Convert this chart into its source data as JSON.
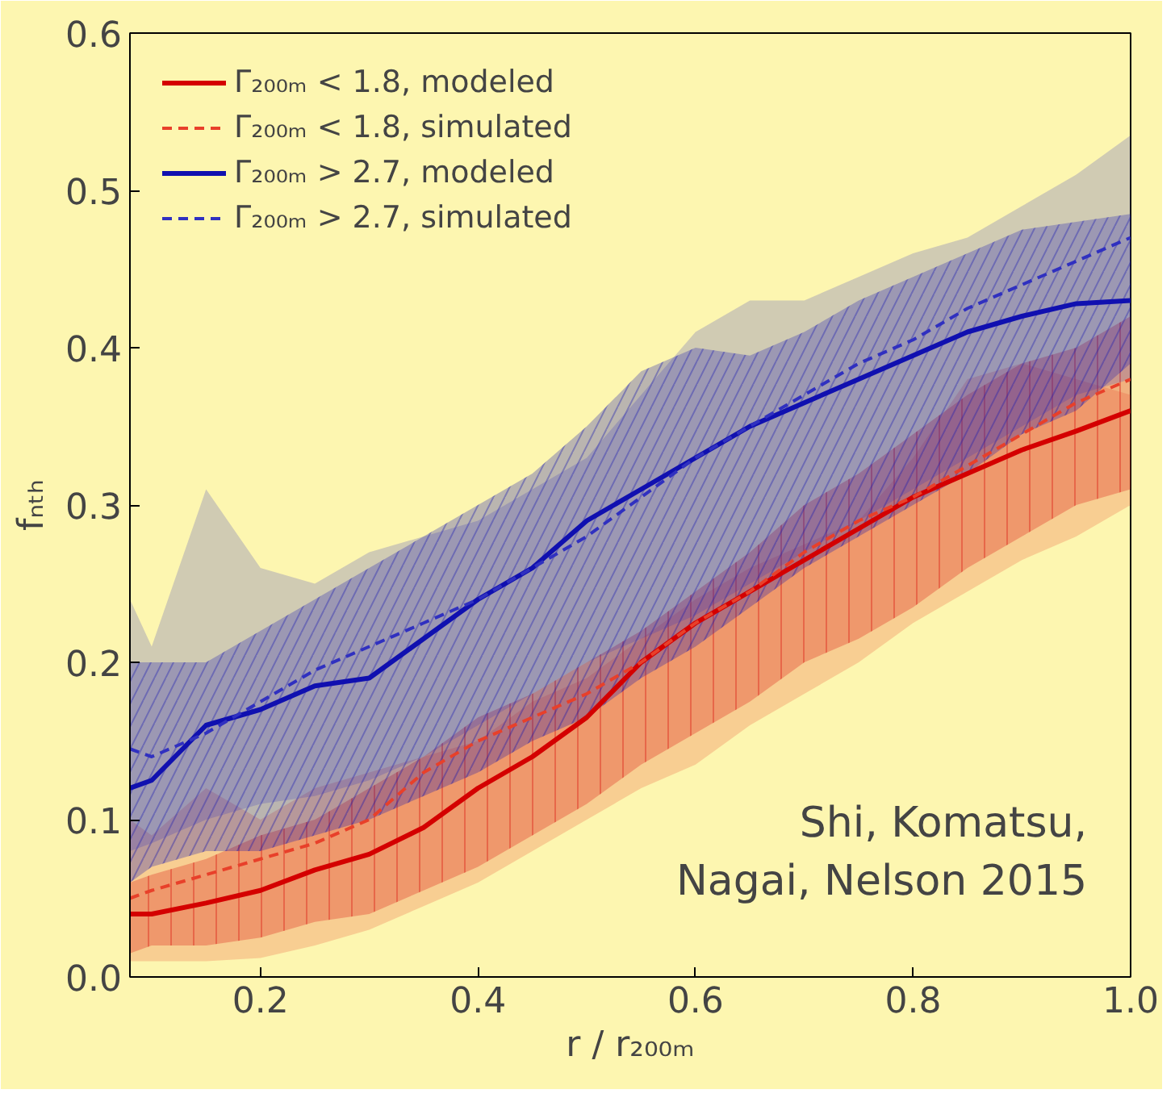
{
  "chart_data": {
    "type": "line",
    "xlabel": "r / r₂₀₀ₘ",
    "ylabel": "fₙₜₕ",
    "x": [
      0.08,
      0.1,
      0.15,
      0.2,
      0.25,
      0.3,
      0.35,
      0.4,
      0.45,
      0.5,
      0.55,
      0.6,
      0.65,
      0.7,
      0.75,
      0.8,
      0.85,
      0.9,
      0.95,
      1.0
    ],
    "series": [
      {
        "name": "Γ₂₀₀ₘ < 1.8, modeled",
        "color": "#d40000",
        "line_style": "solid",
        "values": [
          0.04,
          0.04,
          0.047,
          0.055,
          0.068,
          0.078,
          0.095,
          0.12,
          0.14,
          0.165,
          0.2,
          0.225,
          0.245,
          0.265,
          0.285,
          0.305,
          0.32,
          0.335,
          0.347,
          0.36
        ],
        "lower": [
          0.015,
          0.02,
          0.02,
          0.025,
          0.035,
          0.04,
          0.055,
          0.07,
          0.09,
          0.11,
          0.135,
          0.155,
          0.175,
          0.2,
          0.215,
          0.235,
          0.26,
          0.28,
          0.3,
          0.31
        ],
        "upper": [
          0.06,
          0.065,
          0.075,
          0.09,
          0.1,
          0.12,
          0.14,
          0.165,
          0.18,
          0.2,
          0.22,
          0.245,
          0.27,
          0.3,
          0.32,
          0.345,
          0.37,
          0.39,
          0.4,
          0.42
        ]
      },
      {
        "name": "Γ₂₀₀ₘ < 1.8, simulated",
        "color": "#e8402a",
        "line_style": "dashed",
        "values": [
          0.05,
          0.055,
          0.065,
          0.075,
          0.085,
          0.1,
          0.13,
          0.15,
          0.165,
          0.18,
          0.2,
          0.225,
          0.245,
          0.27,
          0.29,
          0.305,
          0.325,
          0.345,
          0.365,
          0.38
        ],
        "lower": [
          0.01,
          0.01,
          0.01,
          0.012,
          0.02,
          0.03,
          0.045,
          0.06,
          0.08,
          0.1,
          0.12,
          0.135,
          0.16,
          0.18,
          0.2,
          0.225,
          0.245,
          0.265,
          0.28,
          0.3
        ],
        "upper": [
          0.1,
          0.09,
          0.12,
          0.1,
          0.12,
          0.13,
          0.14,
          0.15,
          0.175,
          0.19,
          0.215,
          0.24,
          0.26,
          0.275,
          0.29,
          0.33,
          0.38,
          0.39,
          0.38,
          0.37
        ]
      },
      {
        "name": "Γ₂₀₀ₘ > 2.7, modeled",
        "color": "#1010b0",
        "line_style": "solid",
        "values": [
          0.12,
          0.125,
          0.16,
          0.17,
          0.185,
          0.19,
          0.215,
          0.24,
          0.26,
          0.29,
          0.31,
          0.33,
          0.35,
          0.365,
          0.38,
          0.395,
          0.41,
          0.42,
          0.428,
          0.43
        ],
        "lower": [
          0.06,
          0.07,
          0.08,
          0.08,
          0.09,
          0.1,
          0.115,
          0.13,
          0.15,
          0.165,
          0.19,
          0.21,
          0.235,
          0.26,
          0.28,
          0.3,
          0.32,
          0.345,
          0.36,
          0.39
        ],
        "upper": [
          0.2,
          0.2,
          0.2,
          0.22,
          0.24,
          0.26,
          0.28,
          0.3,
          0.32,
          0.35,
          0.385,
          0.4,
          0.395,
          0.41,
          0.43,
          0.445,
          0.46,
          0.475,
          0.48,
          0.485
        ]
      },
      {
        "name": "Γ₂₀₀ₘ > 2.7, simulated",
        "color": "#3030c0",
        "line_style": "dashed",
        "values": [
          0.145,
          0.14,
          0.155,
          0.175,
          0.195,
          0.21,
          0.225,
          0.24,
          0.26,
          0.28,
          0.305,
          0.33,
          0.35,
          0.37,
          0.39,
          0.405,
          0.425,
          0.44,
          0.455,
          0.47
        ],
        "lower": [
          0.08,
          0.085,
          0.1,
          0.11,
          0.115,
          0.125,
          0.14,
          0.16,
          0.18,
          0.2,
          0.215,
          0.23,
          0.25,
          0.27,
          0.29,
          0.31,
          0.33,
          0.35,
          0.37,
          0.38
        ],
        "upper": [
          0.24,
          0.21,
          0.31,
          0.26,
          0.25,
          0.27,
          0.28,
          0.29,
          0.31,
          0.33,
          0.37,
          0.41,
          0.43,
          0.43,
          0.445,
          0.46,
          0.47,
          0.49,
          0.51,
          0.535
        ]
      }
    ],
    "xlim": [
      0.08,
      1.0
    ],
    "ylim": [
      0.0,
      0.6
    ],
    "xticks": [
      {
        "value": 0.2,
        "label": "0.2"
      },
      {
        "value": 0.4,
        "label": "0.4"
      },
      {
        "value": 0.6,
        "label": "0.6"
      },
      {
        "value": 0.8,
        "label": "0.8"
      },
      {
        "value": 1.0,
        "label": "1.0"
      }
    ],
    "yticks": [
      {
        "value": 0.0,
        "label": "0.0"
      },
      {
        "value": 0.1,
        "label": "0.1"
      },
      {
        "value": 0.2,
        "label": "0.2"
      },
      {
        "value": 0.3,
        "label": "0.3"
      },
      {
        "value": 0.4,
        "label": "0.4"
      },
      {
        "value": 0.5,
        "label": "0.5"
      },
      {
        "value": 0.6,
        "label": "0.6"
      }
    ],
    "grid": false,
    "legend": "top left",
    "annotations": [
      {
        "text": "Shi, Komatsu,\nNagai, Nelson 2015"
      }
    ]
  }
}
